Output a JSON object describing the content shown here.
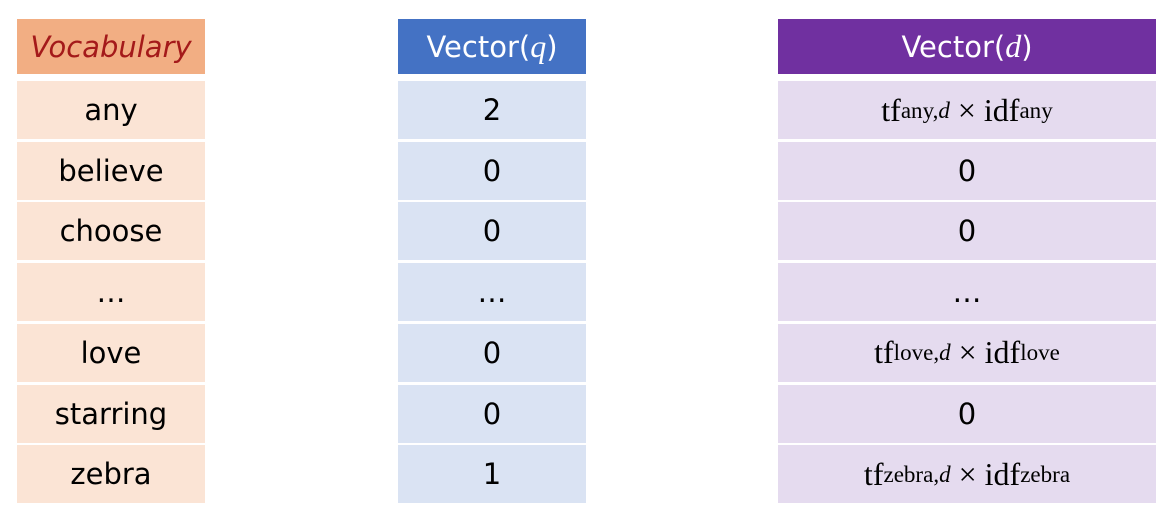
{
  "columns": [
    {
      "header": "Vocabulary",
      "cells": [
        "any",
        "believe",
        "choose",
        "…",
        "love",
        "starring",
        "zebra"
      ]
    },
    {
      "header": [
        "Vector(",
        "q",
        ")"
      ],
      "cells": [
        2,
        0,
        0,
        "…",
        0,
        0,
        1
      ]
    },
    {
      "header": [
        "Vector(",
        "d",
        ")"
      ],
      "cells": [
        {
          "tf": "tf",
          "tf_sub": "any,",
          "doc": "d",
          "times": "×",
          "idf": "idf",
          "idf_sub": "any"
        },
        0,
        0,
        "…",
        {
          "tf": "tf",
          "tf_sub": "love,",
          "doc": "d",
          "times": "×",
          "idf": "idf",
          "idf_sub": "love"
        },
        0,
        {
          "tf": "tf",
          "tf_sub": "zebra,",
          "doc": "d",
          "times": "×",
          "idf": "idf",
          "idf_sub": "zebra"
        }
      ]
    }
  ]
}
